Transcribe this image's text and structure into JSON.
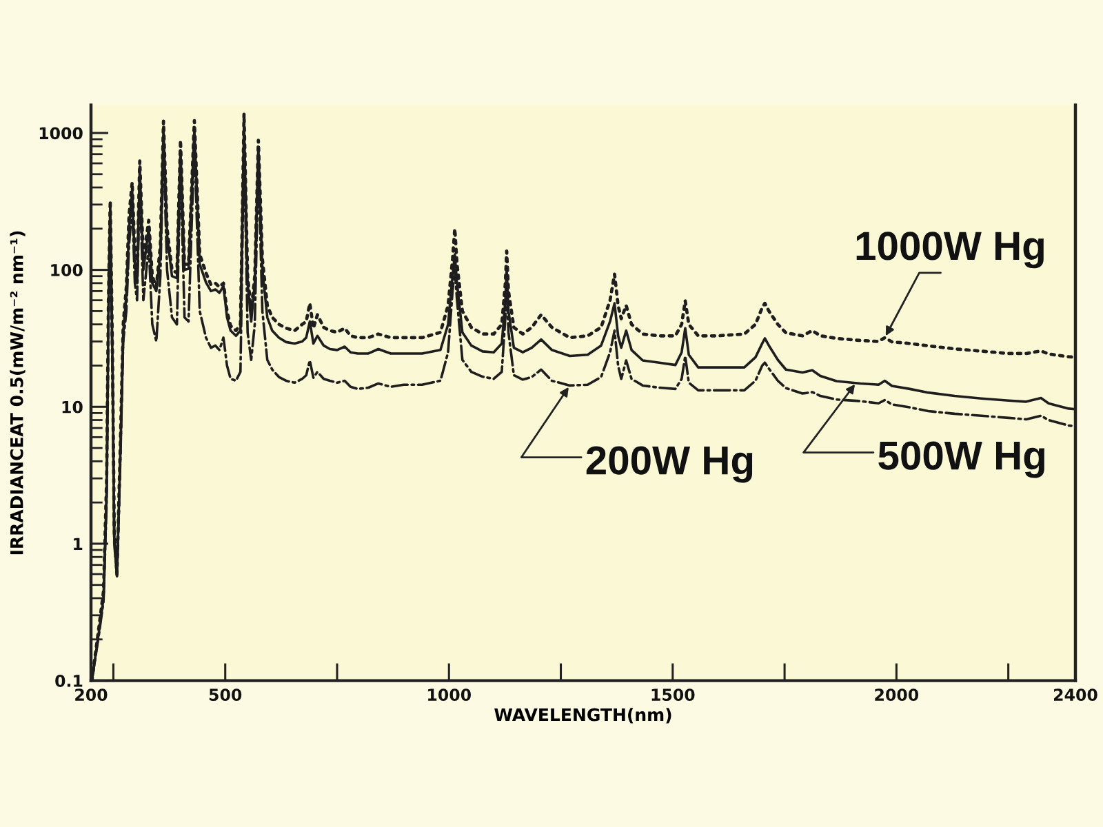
{
  "chart_data": {
    "type": "line",
    "xlabel": "WAVELENGTH(nm)",
    "ylabel": "IRRADIANCEAT 0.5(mW/m⁻² nm⁻¹)",
    "log": true,
    "xlim": [
      200,
      2400
    ],
    "ylim": [
      0.1,
      1600
    ],
    "xticks": [
      200,
      {
        "value": 250,
        "label": null
      },
      500,
      {
        "value": 750,
        "label": null
      },
      1000,
      {
        "value": 1250,
        "label": null
      },
      1500,
      {
        "value": 1750,
        "label": null
      },
      2000,
      {
        "value": 2250,
        "label": null
      },
      2400
    ],
    "yticks": [
      0.1,
      1,
      10,
      100,
      1000
    ],
    "x": [
      202,
      218,
      228,
      235,
      239,
      243,
      248,
      252,
      258,
      266,
      272,
      279,
      285,
      292,
      298,
      303,
      309,
      317,
      329,
      337,
      346,
      355,
      362,
      370,
      381,
      392,
      400,
      409,
      418,
      431,
      443,
      457,
      468,
      478,
      487,
      496,
      504,
      512,
      524,
      534,
      542,
      550,
      558,
      566,
      574,
      583,
      594,
      605,
      620,
      636,
      655,
      672,
      681,
      689,
      697,
      706,
      720,
      734,
      750,
      767,
      780,
      796,
      820,
      842,
      870,
      899,
      940,
      981,
      998,
      1008,
      1013,
      1018,
      1030,
      1050,
      1075,
      1100,
      1118,
      1126,
      1129,
      1133,
      1145,
      1165,
      1185,
      1206,
      1230,
      1270,
      1310,
      1340,
      1360,
      1370,
      1378,
      1385,
      1396,
      1408,
      1433,
      1470,
      1506,
      1520,
      1528,
      1536,
      1557,
      1600,
      1660,
      1685,
      1700,
      1706,
      1715,
      1735,
      1753,
      1790,
      1812,
      1830,
      1866,
      1920,
      1960,
      1974,
      1990,
      2030,
      2071,
      2130,
      2190,
      2251,
      2290,
      2323,
      2340,
      2385,
      2400
    ],
    "series": [
      {
        "color": "#1e1e1e",
        "line_style": "dotted",
        "values": [
          0.1,
          0.25,
          0.45,
          3,
          60,
          320,
          25,
          1.2,
          0.6,
          6,
          40,
          75,
          250,
          435,
          130,
          100,
          625,
          120,
          230,
          90,
          75,
          150,
          1220,
          200,
          100,
          95,
          885,
          110,
          110,
          1230,
          130,
          95,
          78,
          80,
          75,
          80,
          50,
          39,
          36,
          40,
          1380,
          90,
          50,
          90,
          885,
          120,
          55,
          45,
          40,
          37.5,
          36,
          40,
          42,
          57,
          37.5,
          47,
          38,
          36,
          35,
          37.5,
          33,
          32,
          32,
          34,
          32,
          32,
          32,
          35,
          55,
          120,
          200,
          110,
          50,
          38,
          34,
          34,
          40,
          80,
          137,
          70,
          38,
          34,
          38,
          47,
          38,
          32,
          33,
          38,
          60,
          93,
          55,
          44,
          55,
          40,
          34,
          33,
          33,
          40,
          59.4,
          40,
          33,
          33,
          34,
          40,
          53,
          57,
          50,
          40,
          34.7,
          33,
          36,
          33,
          31.6,
          30.5,
          30,
          32,
          29.8,
          29,
          27.9,
          26.5,
          25.5,
          24.5,
          24.5,
          25.6,
          24.3,
          23.2,
          23
        ]
      },
      {
        "color": "#1e1e1e",
        "line_style": "solid",
        "values": [
          0.1,
          0.23,
          0.4,
          2.5,
          50,
          300,
          22,
          1.1,
          0.58,
          5,
          35,
          65,
          200,
          380,
          110,
          80,
          550,
          100,
          200,
          80,
          70,
          130,
          1050,
          180,
          90,
          87,
          750,
          100,
          102,
          1050,
          110,
          81,
          70,
          72,
          68,
          76,
          45,
          36,
          33,
          36,
          1150,
          80,
          42,
          80,
          780,
          100,
          45,
          36,
          32,
          29.7,
          29,
          30,
          32,
          42,
          29,
          33,
          28,
          26.4,
          26,
          27.5,
          25,
          24.5,
          24.5,
          26.4,
          24.5,
          24.5,
          24.5,
          26,
          40,
          90,
          130,
          80,
          35,
          28,
          25.4,
          25,
          29,
          60,
          100,
          50,
          27,
          25,
          27,
          31,
          26,
          23.5,
          24,
          28,
          42,
          57,
          33,
          27,
          36,
          26,
          21.8,
          21,
          20.2,
          25,
          37.5,
          24,
          19.4,
          19.4,
          19.4,
          23,
          29,
          31.6,
          28,
          22,
          18.7,
          17.8,
          18.5,
          16.8,
          15.4,
          14.8,
          14.5,
          15.5,
          14.2,
          13.5,
          12.7,
          12,
          11.5,
          11.1,
          10.9,
          11.6,
          10.6,
          9.7,
          9.6
        ]
      },
      {
        "color": "#1e1e1e",
        "line_style": "dashdot",
        "values": [
          0.1,
          0.22,
          0.38,
          2,
          40,
          250,
          18,
          1,
          0.58,
          4.5,
          30,
          50,
          150,
          300,
          80,
          60,
          450,
          60,
          150,
          40,
          30,
          90,
          850,
          100,
          45,
          40,
          600,
          45,
          42,
          850,
          50,
          32,
          27,
          28,
          26,
          32,
          20,
          16,
          15.5,
          18,
          900,
          35,
          22,
          40,
          600,
          50,
          22,
          18.7,
          16.5,
          15.5,
          15,
          16,
          17,
          21.8,
          16.3,
          18,
          16,
          15.5,
          15,
          15.5,
          14,
          13.5,
          13.8,
          14.8,
          14,
          14.5,
          14.5,
          15.5,
          25,
          70,
          100,
          60,
          22,
          18,
          16.6,
          16,
          18,
          45,
          75,
          35,
          17,
          15.8,
          16.5,
          18.7,
          15.5,
          14.3,
          14.5,
          16.5,
          25,
          36,
          20,
          16,
          21.8,
          16,
          14.3,
          13.8,
          13.5,
          16,
          23.5,
          15,
          13.2,
          13.2,
          13.2,
          15.5,
          20,
          21,
          19,
          15.5,
          13.7,
          12.5,
          12.8,
          12,
          11.3,
          11,
          10.6,
          11.2,
          10.4,
          9.9,
          9.3,
          8.9,
          8.6,
          8.3,
          8.1,
          8.6,
          8,
          7.3,
          7.2
        ]
      }
    ],
    "annotations": [
      {
        "text": "1000W Hg",
        "x": 1974,
        "y": 32
      },
      {
        "text": "200W Hg",
        "x": 1270,
        "y": 14.3
      },
      {
        "text": "500W Hg",
        "x": 1910,
        "y": 15
      }
    ]
  }
}
